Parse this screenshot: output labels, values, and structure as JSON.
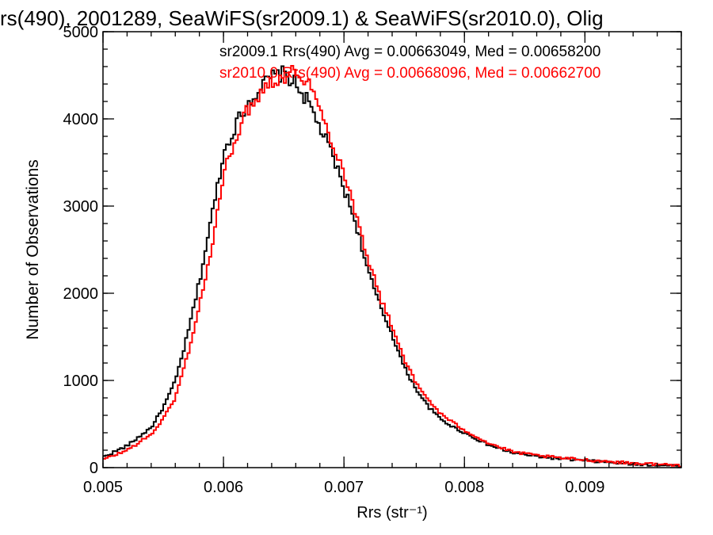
{
  "chart_data": {
    "type": "line",
    "title": "rs(490), 2001289, SeaWiFS(sr2009.1) & SeaWiFS(sr2010.0), Olig",
    "xlabel": "Rrs (str⁻¹)",
    "ylabel": "Number of Observations",
    "xlim": [
      0.005,
      0.0098
    ],
    "ylim": [
      0,
      5000
    ],
    "xticks": [
      "0.005",
      "0.006",
      "0.007",
      "0.008",
      "0.009"
    ],
    "yticks": [
      "0",
      "1000",
      "2000",
      "3000",
      "4000",
      "5000"
    ],
    "step": true,
    "grid": false,
    "series": [
      {
        "name": "sr2009.1",
        "color": "#000000",
        "x": [
          0.005,
          0.0052,
          0.0054,
          0.0055,
          0.0056,
          0.0057,
          0.0058,
          0.0059,
          0.006,
          0.0061,
          0.0062,
          0.0063,
          0.0064,
          0.0065,
          0.0066,
          0.0067,
          0.0068,
          0.0069,
          0.007,
          0.0071,
          0.0072,
          0.0073,
          0.0074,
          0.0075,
          0.0076,
          0.0077,
          0.0078,
          0.0079,
          0.008,
          0.0082,
          0.0084,
          0.0086,
          0.0088,
          0.009,
          0.0092,
          0.0094,
          0.0096,
          0.0098
        ],
        "values": [
          120,
          250,
          460,
          690,
          990,
          1510,
          2130,
          2860,
          3600,
          3930,
          4180,
          4350,
          4480,
          4520,
          4400,
          4200,
          3900,
          3600,
          3200,
          2800,
          2250,
          1850,
          1530,
          1150,
          900,
          700,
          560,
          470,
          400,
          260,
          170,
          130,
          100,
          80,
          60,
          40,
          30,
          20
        ]
      },
      {
        "name": "sr2010.0",
        "color": "#ff0000",
        "x": [
          0.005,
          0.0052,
          0.0054,
          0.0055,
          0.0056,
          0.0057,
          0.0058,
          0.0059,
          0.006,
          0.0061,
          0.0062,
          0.0063,
          0.0064,
          0.0065,
          0.0066,
          0.0067,
          0.0068,
          0.0069,
          0.007,
          0.0071,
          0.0072,
          0.0073,
          0.0074,
          0.0075,
          0.0076,
          0.0077,
          0.0078,
          0.0079,
          0.008,
          0.0082,
          0.0084,
          0.0086,
          0.0088,
          0.009,
          0.0092,
          0.0094,
          0.0096,
          0.0098
        ],
        "values": [
          90,
          200,
          380,
          560,
          800,
          1280,
          1850,
          2500,
          3340,
          3800,
          4100,
          4300,
          4450,
          4480,
          4550,
          4450,
          4100,
          3750,
          3400,
          2900,
          2400,
          1950,
          1620,
          1250,
          960,
          780,
          620,
          520,
          430,
          280,
          180,
          140,
          110,
          90,
          70,
          50,
          40,
          25
        ]
      }
    ],
    "annotations": [
      {
        "text": "sr2009.1 Rrs(490) Avg = 0.00663049, Med = 0.00658200",
        "color": "#000000"
      },
      {
        "text": "sr2010.0 Rrs(490) Avg = 0.00668096, Med = 0.00662700",
        "color": "#ff0000"
      }
    ]
  }
}
